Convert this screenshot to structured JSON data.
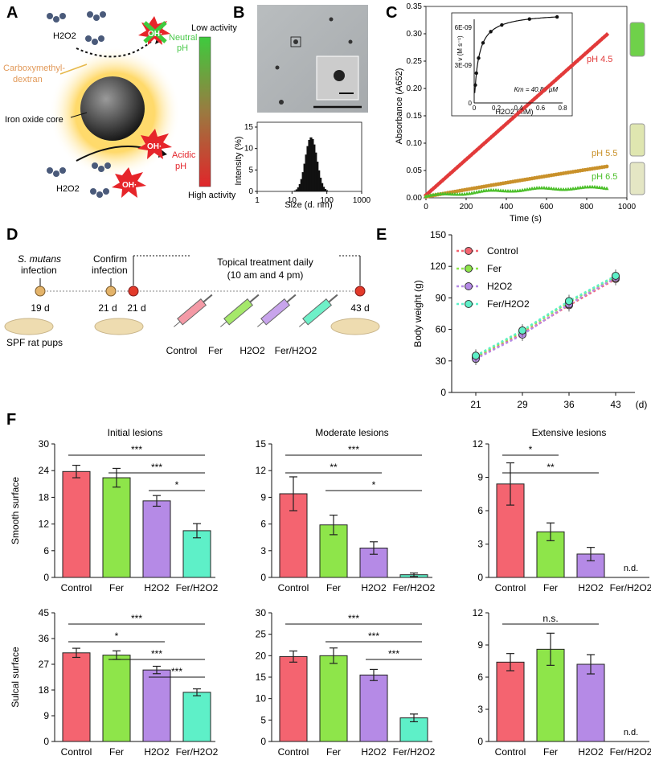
{
  "panel_labels": {
    "A": "A",
    "B": "B",
    "C": "C",
    "D": "D",
    "E": "E",
    "F": "F"
  },
  "panelA": {
    "h2o2_top": "H2O2",
    "h2o2_bottom": "H2O2",
    "oh": "OH·",
    "neutral": "Neutral",
    "neutral_ph": "pH",
    "acidic": "Acidic",
    "acidic_ph": "pH",
    "coating": "Carboxymethyl-",
    "coating2": "dextran",
    "core": "Iron oxide core",
    "low": "Low activity",
    "high": "High activity"
  },
  "panelB": {
    "ylabel": "Intensity (%)",
    "xlabel": "Size (d. nm)",
    "yticks": [
      "0",
      "5",
      "10",
      "15"
    ],
    "xticks": [
      "1",
      "10",
      "100",
      "1000"
    ]
  },
  "panelC": {
    "ylabel": "Absorbance (A652)",
    "xlabel": "Time (s)",
    "yticks": [
      "0.00",
      "0.05",
      "0.10",
      "0.15",
      "0.20",
      "0.25",
      "0.30",
      "0.35"
    ],
    "xticks": [
      "0",
      "200",
      "400",
      "600",
      "800",
      "1000"
    ],
    "labels": {
      "ph45": "pH 4.5",
      "ph55": "pH 5.5",
      "ph65": "pH 6.5"
    },
    "colors": {
      "ph45": "#e23a3a",
      "ph55": "#c9912a",
      "ph65": "#4cbf2a"
    },
    "inset": {
      "ylabel": "v (M s⁻¹)",
      "xlabel": "H2O2 (mM)",
      "km": "Km = 40.89 μM",
      "yticks": [
        "0",
        "3E-09",
        "6E-09"
      ],
      "xticks": [
        "0",
        "0.2",
        "0.4",
        "0.6",
        "0.8"
      ]
    }
  },
  "panelD": {
    "smutans": "S. mutans",
    "infection": "infection",
    "confirm": "Confirm",
    "confirm2": "infection",
    "topical": "Topical treatment daily",
    "times": "(10 am and 4 pm)",
    "d19": "19 d",
    "d21a": "21 d",
    "d21b": "21 d",
    "d43": "43 d",
    "rats": "SPF rat pups",
    "groups": [
      "Control",
      "Fer",
      "H2O2",
      "Fer/H2O2"
    ]
  },
  "colors": {
    "Control": "#f46470",
    "Fer": "#8ee54a",
    "H2O2": "#b58ae6",
    "FerH2O2": "#5ef0c8"
  },
  "chart_data": [
    {
      "type": "line",
      "id": "E",
      "title": "",
      "xlabel": "(d)",
      "ylabel": "Body weight (g)",
      "x": [
        21,
        29,
        36,
        43
      ],
      "ylim": [
        0,
        150
      ],
      "yticks": [
        0,
        30,
        60,
        90,
        120,
        150
      ],
      "series": [
        {
          "name": "Control",
          "values": [
            33,
            56,
            83,
            108
          ]
        },
        {
          "name": "Fer",
          "values": [
            34,
            58,
            86,
            110
          ]
        },
        {
          "name": "H2O2",
          "values": [
            32,
            55,
            84,
            109
          ]
        },
        {
          "name": "Fer/H2O2",
          "values": [
            35,
            59,
            87,
            111
          ]
        }
      ]
    },
    {
      "type": "bar",
      "id": "F1",
      "title": "Initial lesions",
      "ylabel": "Smooth surface",
      "categories": [
        "Control",
        "Fer",
        "H2O2",
        "Fer/H2O2"
      ],
      "values": [
        23.8,
        22.4,
        17.2,
        10.5
      ],
      "errors": [
        1.4,
        2.1,
        1.2,
        1.6
      ],
      "ylim": [
        0,
        30
      ],
      "yticks": [
        0,
        6,
        12,
        18,
        24,
        30
      ],
      "sig": [
        {
          "a": 0,
          "b": 3,
          "label": "***"
        },
        {
          "a": 1,
          "b": 3,
          "label": "***"
        },
        {
          "a": 2,
          "b": 3,
          "label": "*"
        }
      ]
    },
    {
      "type": "bar",
      "id": "F2",
      "title": "Moderate lesions",
      "ylabel": "",
      "categories": [
        "Control",
        "Fer",
        "H2O2",
        "Fer/H2O2"
      ],
      "values": [
        9.4,
        5.9,
        3.3,
        0.3
      ],
      "errors": [
        1.9,
        1.1,
        0.7,
        0.2
      ],
      "ylim": [
        0,
        15
      ],
      "yticks": [
        0,
        3,
        6,
        9,
        12,
        15
      ],
      "sig": [
        {
          "a": 0,
          "b": 3,
          "label": "***"
        },
        {
          "a": 0,
          "b": 2,
          "label": "**"
        },
        {
          "a": 1,
          "b": 3,
          "label": "*"
        }
      ]
    },
    {
      "type": "bar",
      "id": "F3",
      "title": "Extensive lesions",
      "ylabel": "",
      "categories": [
        "Control",
        "Fer",
        "H2O2",
        "Fer/H2O2"
      ],
      "values": [
        8.4,
        4.1,
        2.1,
        null
      ],
      "errors": [
        1.9,
        0.8,
        0.6,
        0
      ],
      "ylim": [
        0,
        12
      ],
      "yticks": [
        0,
        3,
        6,
        9,
        12
      ],
      "nd": "n.d.",
      "sig": [
        {
          "a": 0,
          "b": 1,
          "label": "*"
        },
        {
          "a": 0,
          "b": 2,
          "label": "**"
        }
      ]
    },
    {
      "type": "bar",
      "id": "F4",
      "title": "",
      "ylabel": "Sulcal surface",
      "categories": [
        "Control",
        "Fer",
        "H2O2",
        "Fer/H2O2"
      ],
      "values": [
        31.0,
        30.2,
        25.0,
        17.2
      ],
      "errors": [
        1.6,
        1.5,
        1.3,
        1.2
      ],
      "ylim": [
        0,
        45
      ],
      "yticks": [
        0,
        9,
        18,
        27,
        36,
        45
      ],
      "sig": [
        {
          "a": 0,
          "b": 3,
          "label": "***"
        },
        {
          "a": 0,
          "b": 2,
          "label": "*"
        },
        {
          "a": 1,
          "b": 3,
          "label": "***"
        },
        {
          "a": 2,
          "b": 3,
          "label": "***"
        }
      ]
    },
    {
      "type": "bar",
      "id": "F5",
      "title": "",
      "ylabel": "",
      "categories": [
        "Control",
        "Fer",
        "H2O2",
        "Fer/H2O2"
      ],
      "values": [
        19.8,
        20.0,
        15.5,
        5.5
      ],
      "errors": [
        1.3,
        1.8,
        1.3,
        0.9
      ],
      "ylim": [
        0,
        30
      ],
      "yticks": [
        0,
        5,
        10,
        15,
        20,
        25,
        30
      ],
      "sig": [
        {
          "a": 0,
          "b": 3,
          "label": "***"
        },
        {
          "a": 1,
          "b": 3,
          "label": "***"
        },
        {
          "a": 2,
          "b": 3,
          "label": "***"
        }
      ]
    },
    {
      "type": "bar",
      "id": "F6",
      "title": "",
      "ylabel": "",
      "categories": [
        "Control",
        "Fer",
        "H2O2",
        "Fer/H2O2"
      ],
      "values": [
        7.4,
        8.6,
        7.2,
        null
      ],
      "errors": [
        0.8,
        1.5,
        0.9,
        0
      ],
      "ylim": [
        0,
        12
      ],
      "yticks": [
        0,
        3,
        6,
        9,
        12
      ],
      "nd": "n.d.",
      "sig": [
        {
          "a": 0,
          "b": 2,
          "label": "n.s."
        }
      ]
    }
  ]
}
